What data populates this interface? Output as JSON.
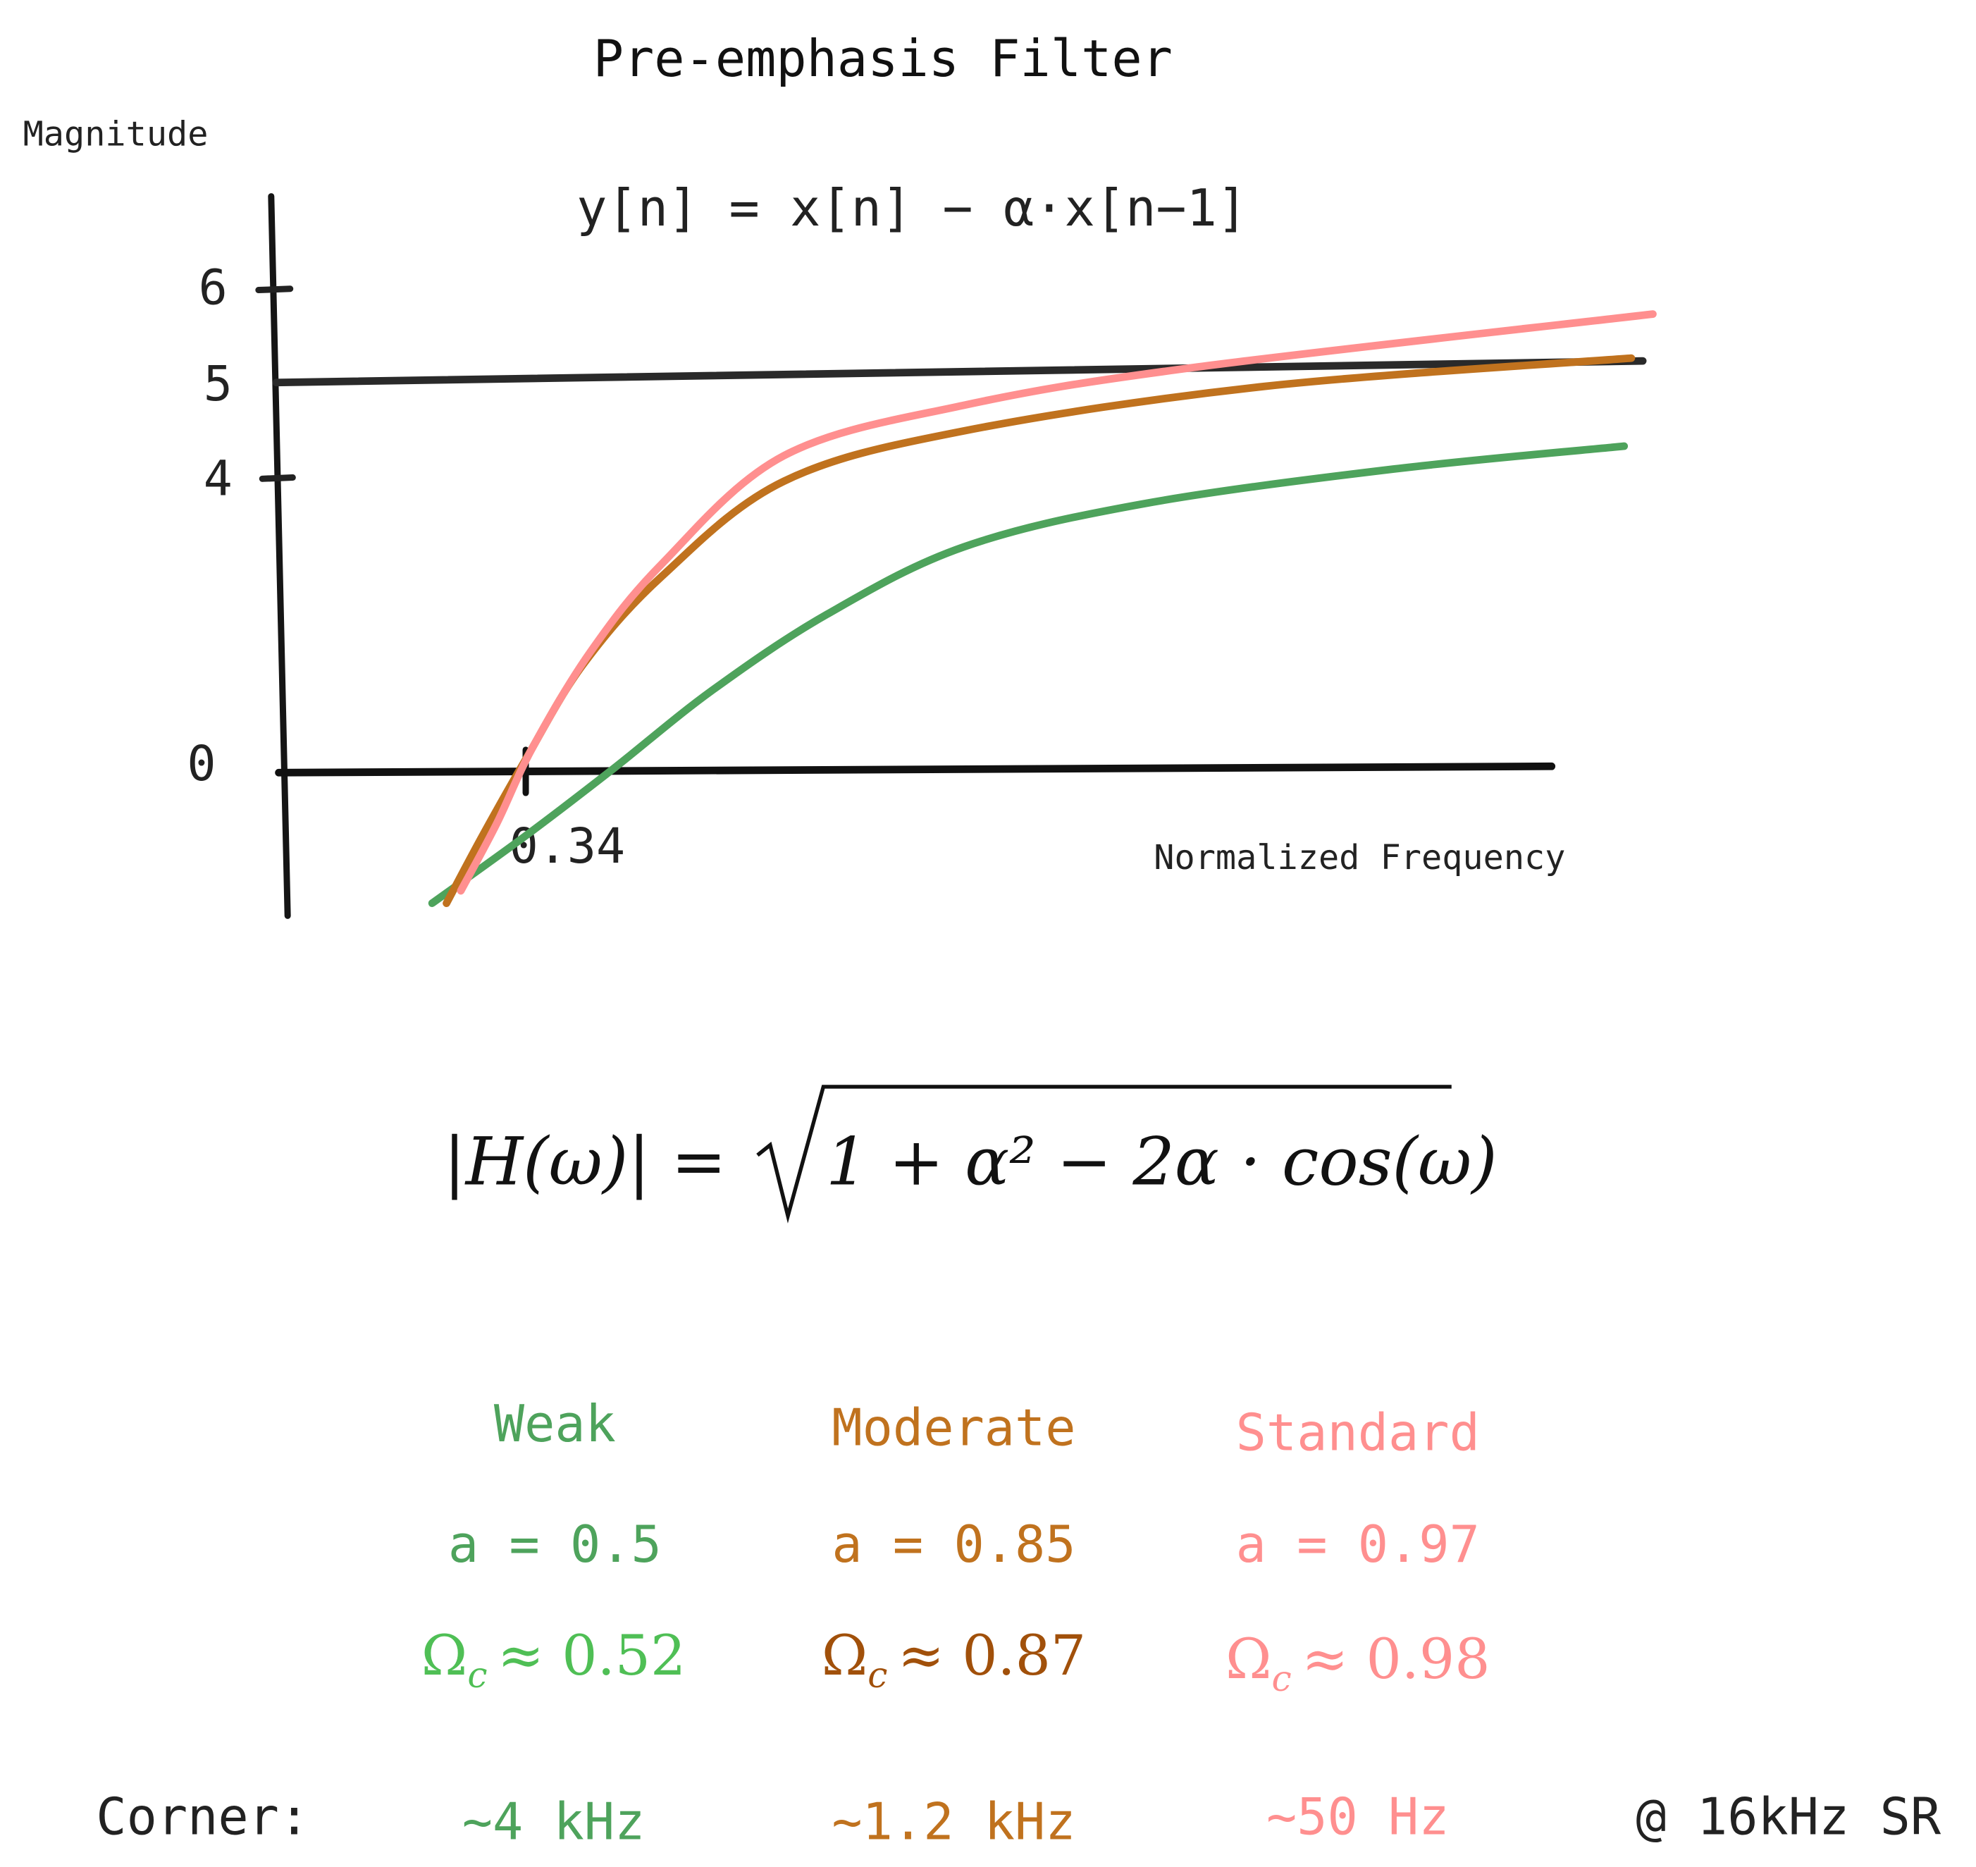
{
  "chart_data": {
    "type": "line",
    "title": "Pre-emphasis Filter",
    "subtitle": "y[n] = x[n] − α·x[n−1]",
    "xlabel": "Normalized Frequency",
    "ylabel": "Magnitude",
    "y_ticks": [
      {
        "value": 0,
        "label": "0"
      },
      {
        "value": 4,
        "label": "4"
      },
      {
        "value": 5,
        "label": "5"
      },
      {
        "value": 6,
        "label": "6"
      }
    ],
    "x_ticks": [
      {
        "value": 0.34,
        "label": "0.34"
      }
    ],
    "grid": false,
    "reference_line": {
      "x": [
        0,
        1.9
      ],
      "y": [
        5,
        5.23
      ],
      "color": "#2a2a2a"
    },
    "series": [
      {
        "name": "Weak",
        "color": "#4ea35c",
        "x": [
          0.21,
          0.34,
          0.46,
          0.6,
          0.76,
          0.95,
          1.2,
          1.55,
          1.87
        ],
        "y": [
          -1.82,
          -0.9,
          0.0,
          1.09,
          2.13,
          3.05,
          3.64,
          4.09,
          4.33
        ]
      },
      {
        "name": "Moderate",
        "color": "#c0721e",
        "x": [
          0.23,
          0.28,
          0.34,
          0.42,
          0.53,
          0.7,
          0.95,
          1.37,
          1.88
        ],
        "y": [
          -1.82,
          -0.9,
          0.14,
          1.44,
          2.65,
          3.95,
          4.49,
          4.96,
          5.26
        ]
      },
      {
        "name": "Standard",
        "color": "#ff8f8f",
        "x": [
          0.25,
          0.3,
          0.35,
          0.43,
          0.53,
          0.7,
          0.95,
          1.27,
          1.91
        ],
        "y": [
          -1.65,
          -0.73,
          0.31,
          1.61,
          2.82,
          4.23,
          4.76,
          5.16,
          5.73
        ]
      }
    ]
  },
  "formula": {
    "lhs": "|H(ω)| =",
    "radicand": "1 + α² − 2α · cos(ω)"
  },
  "legend": [
    {
      "name": "Weak",
      "alpha": "a = 0.5",
      "omega": "Ωc ≈ 0.52",
      "omega_sym": "Ω",
      "omega_sub": "c",
      "omega_val": "≈ 0.52",
      "corner": "~4 kHz",
      "color": "#4ea35c",
      "omega_color": "#4fbf55"
    },
    {
      "name": "Moderate",
      "alpha": "a = 0.85",
      "omega": "Ωc ≈ 0.87",
      "omega_sym": "Ω",
      "omega_sub": "c",
      "omega_val": "≈ 0.87",
      "corner": "~1.2 kHz",
      "color": "#c0721e",
      "omega_color": "#a1500a"
    },
    {
      "name": "Standard",
      "alpha": "a = 0.97",
      "omega": "Ωc ≈ 0.98",
      "omega_sym": "Ω",
      "omega_sub": "c",
      "omega_val": "≈ 0.98",
      "corner": "~50 Hz",
      "color": "#ff8f8f",
      "omega_color": "#ff8f8f"
    }
  ],
  "corner_label": "Corner:",
  "sample_rate_note": "@ 16kHz SR"
}
